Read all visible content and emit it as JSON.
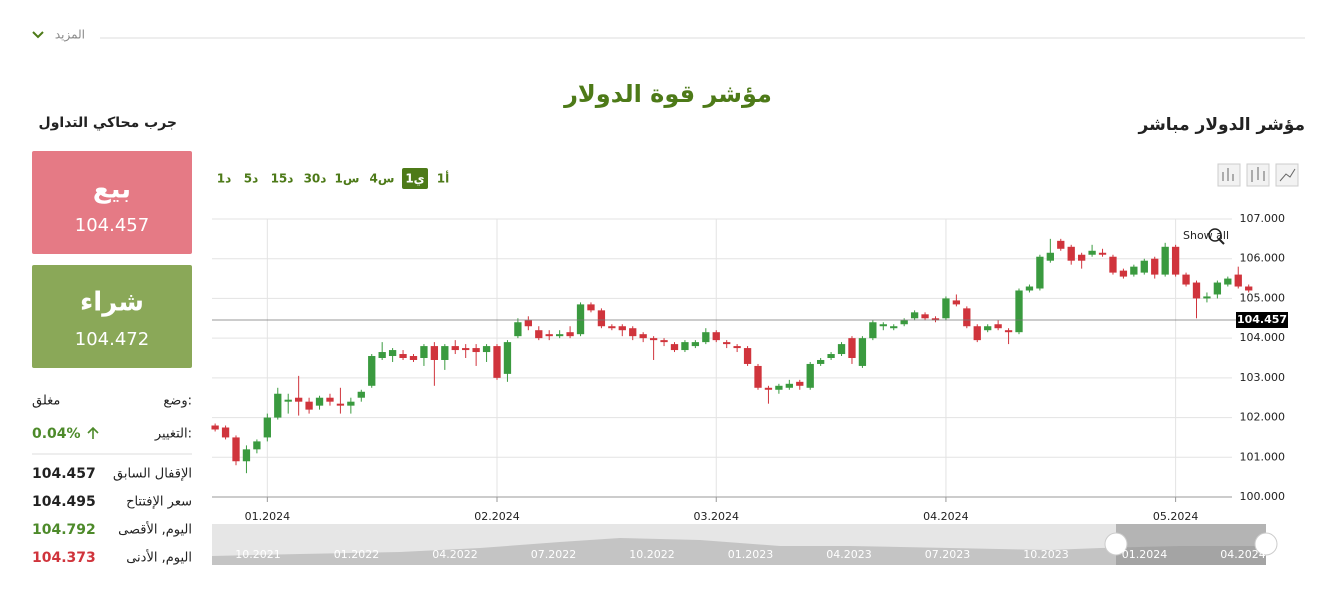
{
  "header": {
    "more": "المزيد",
    "title": "مؤشر قوة الدولار",
    "subtitle": "مؤشر الدولار مباشر"
  },
  "panel": {
    "title": "جرب محاكي التداول",
    "sell": {
      "label": "بيع",
      "price": "104.457"
    },
    "buy": {
      "label": "شراء",
      "price": "104.472"
    },
    "status": {
      "label": "وضع:",
      "value": "مغلق"
    },
    "change": {
      "label": "التغيير:",
      "value": "0.04%"
    },
    "rows": [
      {
        "label": "الإقفال السابق",
        "value": "104.457"
      },
      {
        "label": "سعر الإفتتاح",
        "value": "104.495"
      },
      {
        "label": "اليوم, الأقصى",
        "value": "104.792"
      },
      {
        "label": "اليوم, الأدنى",
        "value": "104.373"
      }
    ]
  },
  "timeframes": {
    "options": [
      "1د",
      "5د",
      "15د",
      "30د",
      "1س",
      "4س",
      "1ي",
      "1أ"
    ],
    "active": "1ي"
  },
  "chart_data": {
    "type": "candlestick",
    "show_all": "Show all",
    "up_color": "#3a9a3f",
    "down_color": "#d0343c",
    "ylim": [
      100,
      107
    ],
    "yticks": [
      {
        "value": 100,
        "label": "100.000"
      },
      {
        "value": 101,
        "label": "101.000"
      },
      {
        "value": 102,
        "label": "102.000"
      },
      {
        "value": 103,
        "label": "103.000"
      },
      {
        "value": 104,
        "label": "104.000"
      },
      {
        "value": 105,
        "label": "105.000"
      },
      {
        "value": 106,
        "label": "106.000"
      },
      {
        "value": 107,
        "label": "107.000"
      }
    ],
    "xlim": [
      -0.3,
      99.7
    ],
    "xticks": [
      {
        "value": 5,
        "label": "01.2024"
      },
      {
        "value": 27,
        "label": "02.2024"
      },
      {
        "value": 48,
        "label": "03.2024"
      },
      {
        "value": 70,
        "label": "04.2024"
      },
      {
        "value": 92,
        "label": "05.2024"
      }
    ],
    "grid": true,
    "last_price": 104.457,
    "navigator_labels": [
      "10.2021",
      "01.2022",
      "04.2022",
      "07.2022",
      "10.2022",
      "01.2023",
      "04.2023",
      "07.2023",
      "10.2023",
      "01.2024",
      "04.2024"
    ],
    "open": [
      101.8,
      101.75,
      101.5,
      100.9,
      101.2,
      101.5,
      102.0,
      102.4,
      102.5,
      102.4,
      102.3,
      102.5,
      102.35,
      102.3,
      102.5,
      102.8,
      103.5,
      103.55,
      103.6,
      103.55,
      103.5,
      103.8,
      103.45,
      103.8,
      103.75,
      103.75,
      103.65,
      103.8,
      103.1,
      104.05,
      104.45,
      104.2,
      104.1,
      104.05,
      104.15,
      104.1,
      104.85,
      104.7,
      104.3,
      104.3,
      104.25,
      104.1,
      104.0,
      103.95,
      103.85,
      103.7,
      103.8,
      103.9,
      104.15,
      103.9,
      103.8,
      103.75,
      103.3,
      102.75,
      102.7,
      102.75,
      102.9,
      102.75,
      103.35,
      103.5,
      103.6,
      104.0,
      103.3,
      104.0,
      104.3,
      104.25,
      104.35,
      104.5,
      104.6,
      104.5,
      104.5,
      104.95,
      104.75,
      104.3,
      104.2,
      104.35,
      104.2,
      104.15,
      105.2,
      105.25,
      105.95,
      106.45,
      106.3,
      106.1,
      106.1,
      106.15,
      106.05,
      105.7,
      105.6,
      105.65,
      106.0,
      105.6,
      106.3,
      105.6,
      105.4,
      105.0,
      105.1,
      105.35,
      105.6,
      105.3
    ],
    "high": [
      101.85,
      101.8,
      101.55,
      101.3,
      101.45,
      102.1,
      102.75,
      102.6,
      103.05,
      102.5,
      102.55,
      102.6,
      102.75,
      102.5,
      102.7,
      103.6,
      103.9,
      103.75,
      103.7,
      103.6,
      103.85,
      103.9,
      103.85,
      103.95,
      103.85,
      103.85,
      103.85,
      103.85,
      103.95,
      104.5,
      104.55,
      104.3,
      104.2,
      104.2,
      104.3,
      104.9,
      104.9,
      104.75,
      104.35,
      104.35,
      104.3,
      104.15,
      104.05,
      104.0,
      103.9,
      103.95,
      103.95,
      104.25,
      104.2,
      103.95,
      103.85,
      103.8,
      103.35,
      102.8,
      102.85,
      102.95,
      102.95,
      103.4,
      103.5,
      103.65,
      103.9,
      104.05,
      104.05,
      104.45,
      104.4,
      104.35,
      104.5,
      104.7,
      104.65,
      104.55,
      105.05,
      105.1,
      104.8,
      104.35,
      104.35,
      104.45,
      104.25,
      105.25,
      105.35,
      106.1,
      106.5,
      106.5,
      106.35,
      106.15,
      106.35,
      106.25,
      106.1,
      105.75,
      105.85,
      106.0,
      106.05,
      106.4,
      106.35,
      105.65,
      105.45,
      105.15,
      105.45,
      105.55,
      105.8,
      105.35
    ],
    "low": [
      101.65,
      101.45,
      100.8,
      100.6,
      101.1,
      101.4,
      101.95,
      102.1,
      102.05,
      102.1,
      102.2,
      102.3,
      102.1,
      102.1,
      102.4,
      102.75,
      103.45,
      103.4,
      103.45,
      103.4,
      103.3,
      102.8,
      103.2,
      103.6,
      103.5,
      103.3,
      103.4,
      102.95,
      102.9,
      104.0,
      104.2,
      103.95,
      103.95,
      104.0,
      104.0,
      104.05,
      104.65,
      104.25,
      104.2,
      104.05,
      103.95,
      103.9,
      103.45,
      103.8,
      103.65,
      103.65,
      103.75,
      103.85,
      103.9,
      103.75,
      103.65,
      103.3,
      102.7,
      102.35,
      102.6,
      102.7,
      102.7,
      102.7,
      103.3,
      103.45,
      103.55,
      103.35,
      103.25,
      103.95,
      104.2,
      104.2,
      104.3,
      104.45,
      104.45,
      104.4,
      104.45,
      104.8,
      104.25,
      103.9,
      104.15,
      104.2,
      103.85,
      104.1,
      105.15,
      105.2,
      105.9,
      106.2,
      105.85,
      105.75,
      106.05,
      106.05,
      105.6,
      105.5,
      105.55,
      105.6,
      105.5,
      105.55,
      105.55,
      105.3,
      104.5,
      104.9,
      105.0,
      105.3,
      105.25,
      105.15
    ],
    "close": [
      101.7,
      101.5,
      100.9,
      101.2,
      101.4,
      102.0,
      102.6,
      102.45,
      102.4,
      102.2,
      102.5,
      102.4,
      102.3,
      102.4,
      102.65,
      103.55,
      103.65,
      103.7,
      103.5,
      103.45,
      103.8,
      103.45,
      103.8,
      103.7,
      103.7,
      103.65,
      103.8,
      103.0,
      103.9,
      104.4,
      104.3,
      104.0,
      104.05,
      104.1,
      104.05,
      104.85,
      104.7,
      104.3,
      104.25,
      104.2,
      104.05,
      104.0,
      103.95,
      103.9,
      103.7,
      103.9,
      103.9,
      104.15,
      103.95,
      103.85,
      103.75,
      103.35,
      102.75,
      102.7,
      102.8,
      102.85,
      102.8,
      103.35,
      103.45,
      103.6,
      103.85,
      103.5,
      104.0,
      104.4,
      104.35,
      104.3,
      104.45,
      104.65,
      104.5,
      104.45,
      105.0,
      104.85,
      104.3,
      103.95,
      104.3,
      104.25,
      104.15,
      105.2,
      105.3,
      106.05,
      106.15,
      106.25,
      105.95,
      105.95,
      106.2,
      106.1,
      105.65,
      105.55,
      105.8,
      105.95,
      105.6,
      106.3,
      105.6,
      105.35,
      105.0,
      105.05,
      105.4,
      105.5,
      105.3,
      105.2
    ]
  }
}
